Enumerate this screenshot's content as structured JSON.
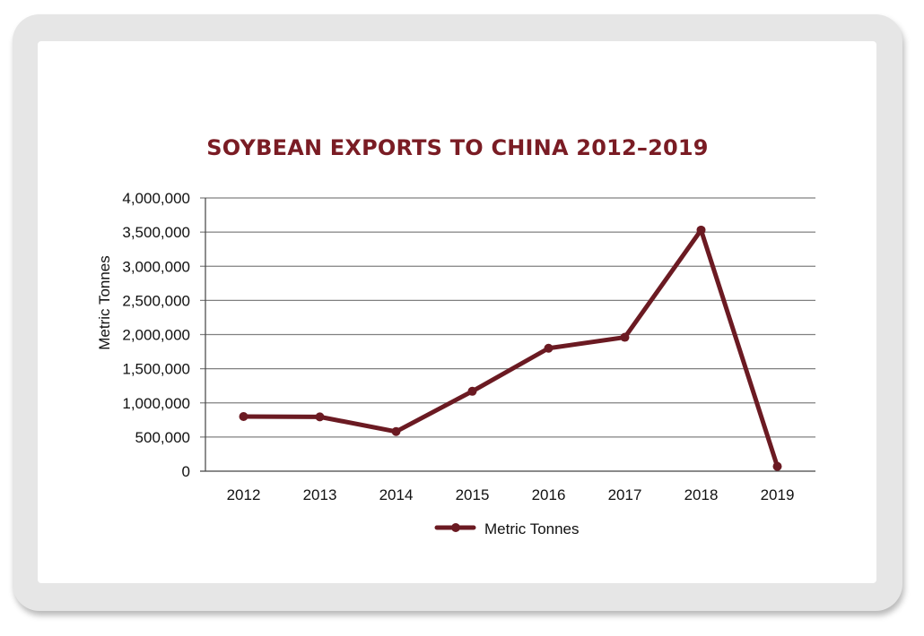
{
  "colors": {
    "series": "#6b1a22",
    "title": "#7a1c24",
    "grid": "#808080",
    "axis": "#444444"
  },
  "chart_data": {
    "type": "line",
    "title": "SOYBEAN EXPORTS TO CHINA 2012–2019",
    "xlabel": "",
    "ylabel": "Metric Tonnes",
    "categories": [
      "2012",
      "2013",
      "2014",
      "2015",
      "2016",
      "2017",
      "2018",
      "2019"
    ],
    "series": [
      {
        "name": "Metric Tonnes",
        "values": [
          800000,
          795000,
          580000,
          1170000,
          1800000,
          1960000,
          3530000,
          70000
        ]
      }
    ],
    "ylim": [
      0,
      4000000
    ],
    "yticks": [
      0,
      500000,
      1000000,
      1500000,
      2000000,
      2500000,
      3000000,
      3500000,
      4000000
    ],
    "ytick_labels": [
      "0",
      "500,000",
      "1,000,000",
      "1,500,000",
      "2,000,000",
      "2,500,000",
      "3,000,000",
      "3,500,000",
      "4,000,000"
    ],
    "grid": true,
    "legend_position": "bottom-center"
  }
}
